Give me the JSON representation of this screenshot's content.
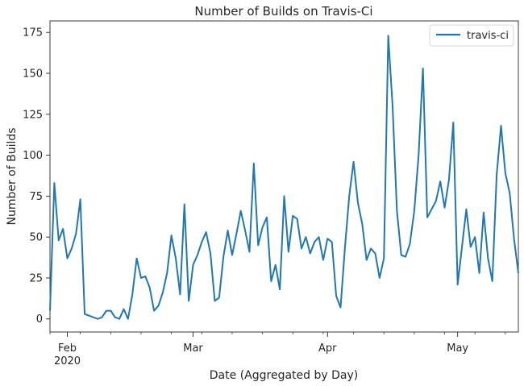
{
  "chart_data": {
    "type": "line",
    "title": "Number of Builds on Travis-Ci",
    "xlabel": "Date (Aggregated by Day)",
    "ylabel": "Number of Builds",
    "xlim": [
      "2020-01-28",
      "2020-05-15"
    ],
    "ylim": [
      -8,
      182
    ],
    "yticks": [
      0,
      25,
      50,
      75,
      100,
      125,
      150,
      175
    ],
    "xticks": [
      {
        "date": "2020-02-01",
        "label": "Feb",
        "sublabel": "2020"
      },
      {
        "date": "2020-03-01",
        "label": "Mar",
        "sublabel": ""
      },
      {
        "date": "2020-04-01",
        "label": "Apr",
        "sublabel": ""
      },
      {
        "date": "2020-05-01",
        "label": "May",
        "sublabel": ""
      }
    ],
    "grid": false,
    "legend": {
      "position": "top-right"
    },
    "series": [
      {
        "name": "travis-ci",
        "color": "#1f77b4",
        "x": [
          "2020-01-28",
          "2020-01-29",
          "2020-01-30",
          "2020-01-31",
          "2020-02-01",
          "2020-02-02",
          "2020-02-03",
          "2020-02-04",
          "2020-02-05",
          "2020-02-06",
          "2020-02-07",
          "2020-02-08",
          "2020-02-09",
          "2020-02-10",
          "2020-02-11",
          "2020-02-12",
          "2020-02-13",
          "2020-02-14",
          "2020-02-15",
          "2020-02-16",
          "2020-02-17",
          "2020-02-18",
          "2020-02-19",
          "2020-02-20",
          "2020-02-21",
          "2020-02-22",
          "2020-02-23",
          "2020-02-24",
          "2020-02-25",
          "2020-02-26",
          "2020-02-27",
          "2020-02-28",
          "2020-02-29",
          "2020-03-01",
          "2020-03-02",
          "2020-03-03",
          "2020-03-04",
          "2020-03-05",
          "2020-03-06",
          "2020-03-07",
          "2020-03-08",
          "2020-03-09",
          "2020-03-10",
          "2020-03-11",
          "2020-03-12",
          "2020-03-13",
          "2020-03-14",
          "2020-03-15",
          "2020-03-16",
          "2020-03-17",
          "2020-03-18",
          "2020-03-19",
          "2020-03-20",
          "2020-03-21",
          "2020-03-22",
          "2020-03-23",
          "2020-03-24",
          "2020-03-25",
          "2020-03-26",
          "2020-03-27",
          "2020-03-28",
          "2020-03-29",
          "2020-03-30",
          "2020-03-31",
          "2020-04-01",
          "2020-04-02",
          "2020-04-03",
          "2020-04-04",
          "2020-04-05",
          "2020-04-06",
          "2020-04-07",
          "2020-04-08",
          "2020-04-09",
          "2020-04-10",
          "2020-04-11",
          "2020-04-12",
          "2020-04-13",
          "2020-04-14",
          "2020-04-15",
          "2020-04-16",
          "2020-04-17",
          "2020-04-18",
          "2020-04-19",
          "2020-04-20",
          "2020-04-21",
          "2020-04-22",
          "2020-04-23",
          "2020-04-24",
          "2020-04-25",
          "2020-04-26",
          "2020-04-27",
          "2020-04-28",
          "2020-04-29",
          "2020-04-30",
          "2020-05-01",
          "2020-05-02",
          "2020-05-03",
          "2020-05-04",
          "2020-05-05",
          "2020-05-06",
          "2020-05-07",
          "2020-05-08",
          "2020-05-09",
          "2020-05-10",
          "2020-05-11",
          "2020-05-12",
          "2020-05-13",
          "2020-05-14",
          "2020-05-15"
        ],
        "y": [
          5,
          83,
          48,
          55,
          37,
          43,
          52,
          73,
          3,
          2,
          1,
          0,
          1,
          5,
          5,
          1,
          0,
          6,
          0,
          15,
          37,
          25,
          26,
          19,
          5,
          8,
          16,
          28,
          51,
          37,
          15,
          70,
          11,
          33,
          39,
          47,
          53,
          40,
          11,
          13,
          38,
          54,
          39,
          52,
          66,
          54,
          41,
          95,
          45,
          56,
          62,
          23,
          33,
          18,
          75,
          41,
          63,
          61,
          43,
          50,
          40,
          47,
          50,
          36,
          49,
          47,
          14,
          7,
          43,
          75,
          96,
          71,
          58,
          36,
          43,
          40,
          25,
          37,
          173,
          130,
          66,
          39,
          38,
          46,
          66,
          100,
          153,
          62,
          67,
          72,
          84,
          68,
          85,
          120,
          21,
          44,
          67,
          44,
          50,
          28,
          65,
          37,
          23,
          88,
          118,
          89,
          77,
          49,
          28
        ]
      }
    ]
  }
}
